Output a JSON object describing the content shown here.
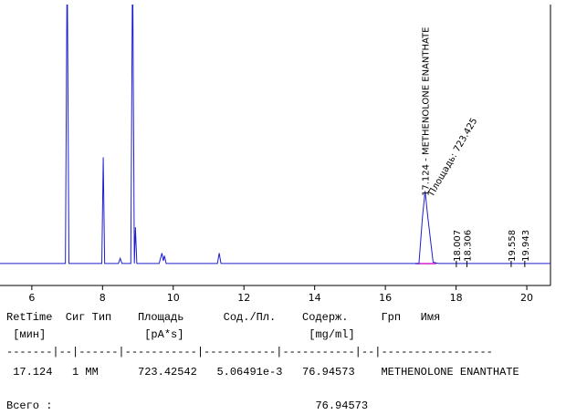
{
  "chart_data": {
    "type": "line",
    "color": "#1f1fcf",
    "x": [
      5.1,
      6.95,
      7.0,
      7.05,
      7.98,
      8.02,
      8.06,
      8.45,
      8.5,
      8.55,
      8.8,
      8.85,
      8.9,
      8.93,
      8.97,
      9.6,
      9.68,
      9.72,
      9.75,
      9.8,
      11.25,
      11.3,
      11.35,
      16.95,
      17.05,
      17.124,
      17.2,
      17.35,
      17.5,
      20.67
    ],
    "values": [
      0,
      0,
      120,
      0,
      0,
      41,
      0,
      0,
      2,
      0,
      0,
      120,
      0,
      14,
      0,
      0,
      4,
      1,
      3,
      0,
      0,
      4,
      0,
      0,
      18,
      28,
      18,
      0.5,
      0,
      0
    ],
    "xlim": [
      5.1,
      20.67
    ],
    "xticks": [
      6,
      8,
      10,
      12,
      14,
      16,
      18,
      20
    ],
    "ylim": [
      -8.5,
      100
    ],
    "main_peak": {
      "x": 17.124,
      "label": "17.124 - METHENOLONE ENANTHATE",
      "area_label": "Площадь: 723.425"
    },
    "peak_labels": [
      18.007,
      18.306,
      19.558,
      19.943
    ]
  },
  "report": {
    "lines": [
      "RetTime  Сиг Тип    Площадь      Сод./Пл.    Содерж.     Грп   Имя",
      " [мин]               [pA*s]                   [mg/ml]",
      "-------|--|------|-----------|-----------|-----------|--|-----------------",
      " 17.124   1 MM      723.42542   5.06491e-3   76.94573    METHENOLONE ENANTHATE",
      "Всего :                                        76.94573"
    ]
  }
}
